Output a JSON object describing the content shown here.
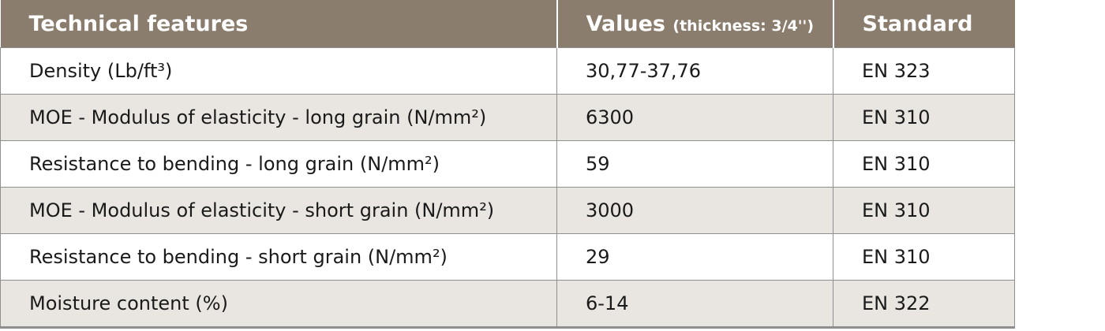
{
  "table": {
    "header": [
      "Technical features",
      {
        "label": "Values",
        "note": "(thickness: 3/4'')"
      },
      "Standard"
    ],
    "rows": [
      [
        "Density (Lb/ft³)",
        "30,77-37,76",
        "EN 323"
      ],
      [
        "MOE - Modulus of elasticity - long grain (N/mm²)",
        "6300",
        "EN 310"
      ],
      [
        "Resistance to bending - long grain (N/mm²)",
        "59",
        "EN 310"
      ],
      [
        "MOE - Modulus of elasticity - short grain (N/mm²)",
        "3000",
        "EN 310"
      ],
      [
        "Resistance to bending - short grain (N/mm²)",
        "29",
        "EN 310"
      ],
      [
        "Moisture content (%)",
        "6-14",
        "EN 322"
      ]
    ]
  }
}
